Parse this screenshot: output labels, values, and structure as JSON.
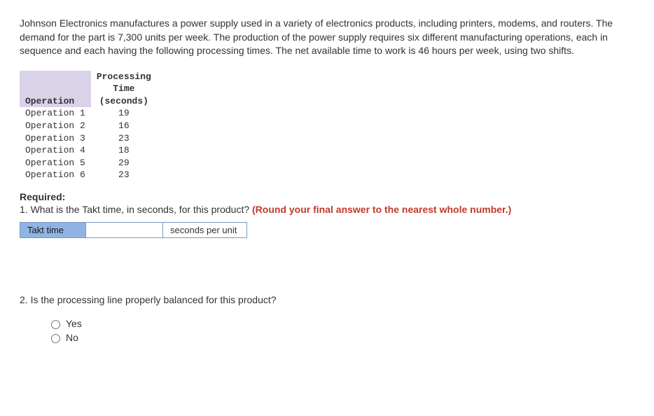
{
  "problem_text": "Johnson Electronics manufactures a power supply used in a variety of electronics products, including printers, modems, and routers. The demand for the part is 7,300 units per week. The production of the power supply requires six different manufacturing operations, each in sequence and each having the following processing times. The net available time to work is 46 hours per week, using two shifts.",
  "table": {
    "header_col1": "Operation",
    "header_col2_line1": "Processing",
    "header_col2_line2": "Time",
    "header_col2_line3": "(seconds)",
    "rows": [
      {
        "op": "Operation 1",
        "val": "19"
      },
      {
        "op": "Operation 2",
        "val": "16"
      },
      {
        "op": "Operation 3",
        "val": "23"
      },
      {
        "op": "Operation 4",
        "val": "18"
      },
      {
        "op": "Operation 5",
        "val": "29"
      },
      {
        "op": "Operation 6",
        "val": "23"
      }
    ]
  },
  "required_label": "Required:",
  "q1_text": "1. What is the Takt time, in seconds, for this product? ",
  "q1_round": "(Round your final answer to the nearest whole number.)",
  "answer": {
    "label": "Takt time",
    "value": "",
    "unit": "seconds per unit"
  },
  "q2_text": "2. Is the processing line properly balanced for this product?",
  "options": {
    "yes": "Yes",
    "no": "No"
  }
}
